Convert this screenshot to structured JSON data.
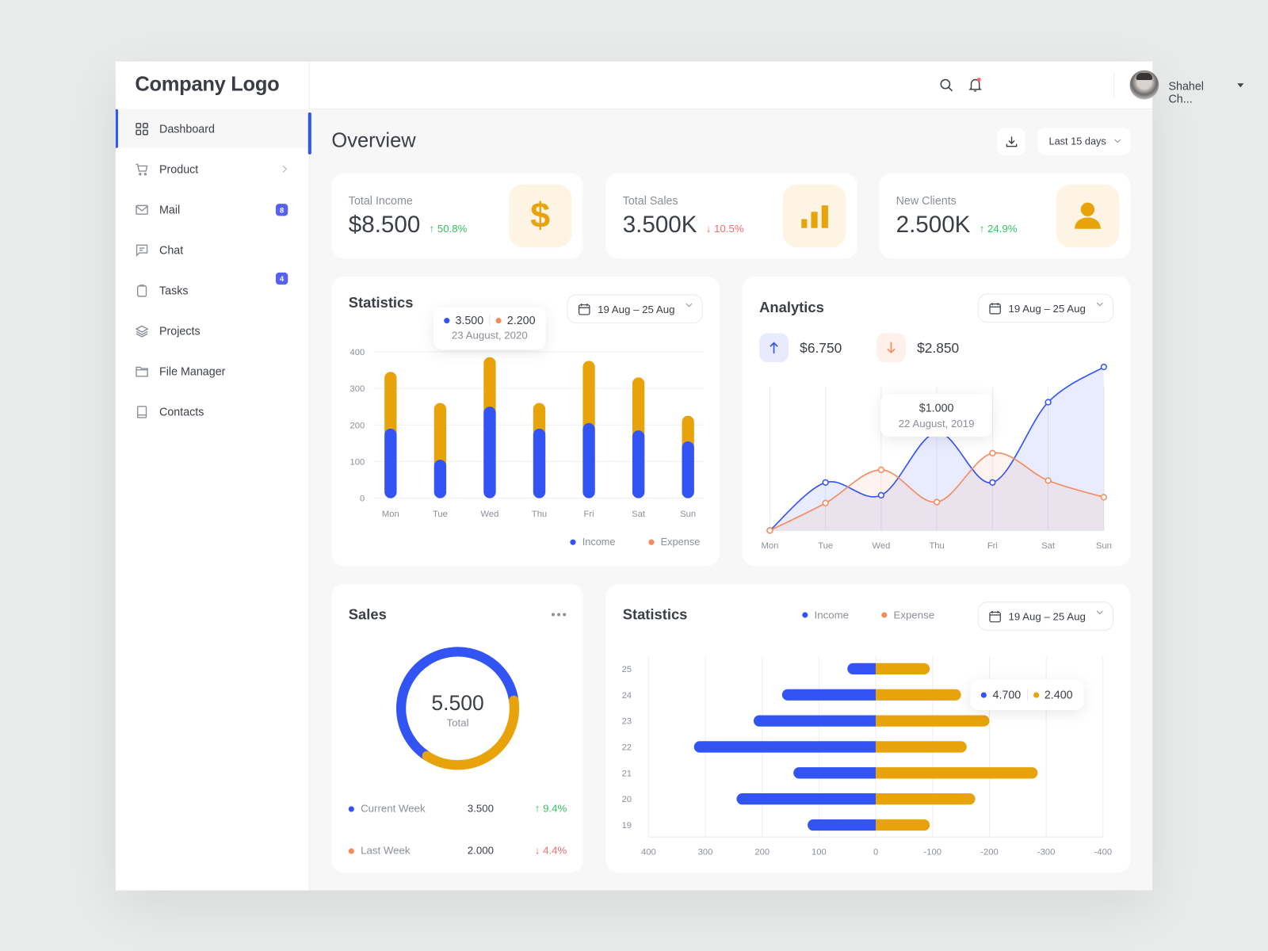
{
  "logo": "Company Logo",
  "sidebar": {
    "items": [
      {
        "label": "Dashboard",
        "icon": "grid-icon",
        "active": true
      },
      {
        "label": "Product",
        "icon": "cart-icon",
        "has_submenu": true
      },
      {
        "label": "Mail",
        "icon": "mail-icon",
        "badge": "8"
      },
      {
        "label": "Chat",
        "icon": "chat-icon"
      },
      {
        "label": "Tasks",
        "icon": "clipboard-icon",
        "badge": "4"
      },
      {
        "label": "Projects",
        "icon": "layers-icon"
      },
      {
        "label": "File Manager",
        "icon": "folder-icon"
      },
      {
        "label": "Contacts",
        "icon": "book-icon"
      }
    ]
  },
  "header": {
    "user_name": "Shahel Ch...",
    "has_notification": true
  },
  "overview": {
    "title": "Overview",
    "range": "Last 15 days"
  },
  "colors": {
    "income": "#3354f4",
    "expense_bar": "#e8a30b",
    "expense_line": "#f58b5b",
    "up": "#39c262",
    "down": "#f56c6c"
  },
  "kpis": [
    {
      "label": "Total Income",
      "value": "$8.500",
      "change": "↑ 50.8%",
      "trend": "up",
      "icon": "dollar-icon"
    },
    {
      "label": "Total Sales",
      "value": "3.500K",
      "change": "↓ 10.5%",
      "trend": "down",
      "icon": "bar-chart-icon"
    },
    {
      "label": "New Clients",
      "value": "2.500K",
      "change": "↑ 24.9%",
      "trend": "up",
      "icon": "user-icon"
    }
  ],
  "statistics": {
    "title": "Statistics",
    "date_range": "19 Aug – 25 Aug",
    "tooltip": {
      "income": "3.500",
      "expense": "2.200",
      "date": "23 August, 2020"
    },
    "legend": [
      "Income",
      "Expense"
    ]
  },
  "analytics": {
    "title": "Analytics",
    "date_range": "19 Aug – 25 Aug",
    "income_total": "$6.750",
    "expense_total": "$2.850",
    "tooltip": {
      "value": "$1.000",
      "date": "22 August, 2019"
    }
  },
  "sales": {
    "title": "Sales",
    "total": "5.500",
    "total_label": "Total",
    "rows": [
      {
        "label": "Current Week",
        "value": "3.500",
        "change": "↑ 9.4%",
        "trend": "up"
      },
      {
        "label": "Last Week",
        "value": "2.000",
        "change": "↓ 4.4%",
        "trend": "down"
      }
    ]
  },
  "statistics2": {
    "title": "Statistics",
    "date_range": "19 Aug – 25 Aug",
    "legend": [
      "Income",
      "Expense"
    ],
    "tooltip": {
      "income": "4.700",
      "expense": "2.400"
    }
  },
  "chart_data": [
    {
      "type": "bar",
      "stacked": true,
      "categories": [
        "Mon",
        "Tue",
        "Wed",
        "Thu",
        "Fri",
        "Sat",
        "Sun"
      ],
      "series": [
        {
          "name": "Income",
          "values": [
            190,
            105,
            250,
            190,
            205,
            185,
            155
          ]
        },
        {
          "name": "Expense",
          "values": [
            155,
            155,
            135,
            70,
            170,
            145,
            70
          ]
        }
      ],
      "y_ticks": [
        "0",
        "100",
        "200",
        "300",
        "400"
      ],
      "ylim": [
        0,
        400
      ],
      "grid": true,
      "legend": "bottom-right"
    },
    {
      "type": "area",
      "categories": [
        "Mon",
        "Tue",
        "Wed",
        "Thu",
        "Fri",
        "Sat",
        "Sun"
      ],
      "series": [
        {
          "values": [
            0,
            49,
            36,
            100,
            49,
            131,
            167
          ]
        },
        {
          "values": [
            0,
            28,
            62,
            29,
            79,
            51,
            34
          ]
        }
      ],
      "ylim": [
        0,
        180
      ],
      "grid": "vertical"
    },
    {
      "type": "pie",
      "donut": true,
      "categories": [
        "Current Week",
        "Last Week"
      ],
      "values": [
        3500,
        2000
      ]
    },
    {
      "type": "bar",
      "orientation": "horizontal",
      "categories": [
        "25",
        "24",
        "23",
        "22",
        "21",
        "20",
        "19"
      ],
      "series": [
        {
          "name": "Income",
          "values": [
            50,
            165,
            215,
            320,
            145,
            245,
            120
          ]
        },
        {
          "name": "Expense",
          "values": [
            -95,
            -150,
            -200,
            -160,
            -285,
            -175,
            -95
          ]
        }
      ],
      "x_ticks": [
        "400",
        "300",
        "200",
        "100",
        "0",
        "-100",
        "-200",
        "-300",
        "-400"
      ],
      "xlim": [
        400,
        -400
      ],
      "grid": "vertical",
      "legend": "top"
    }
  ]
}
